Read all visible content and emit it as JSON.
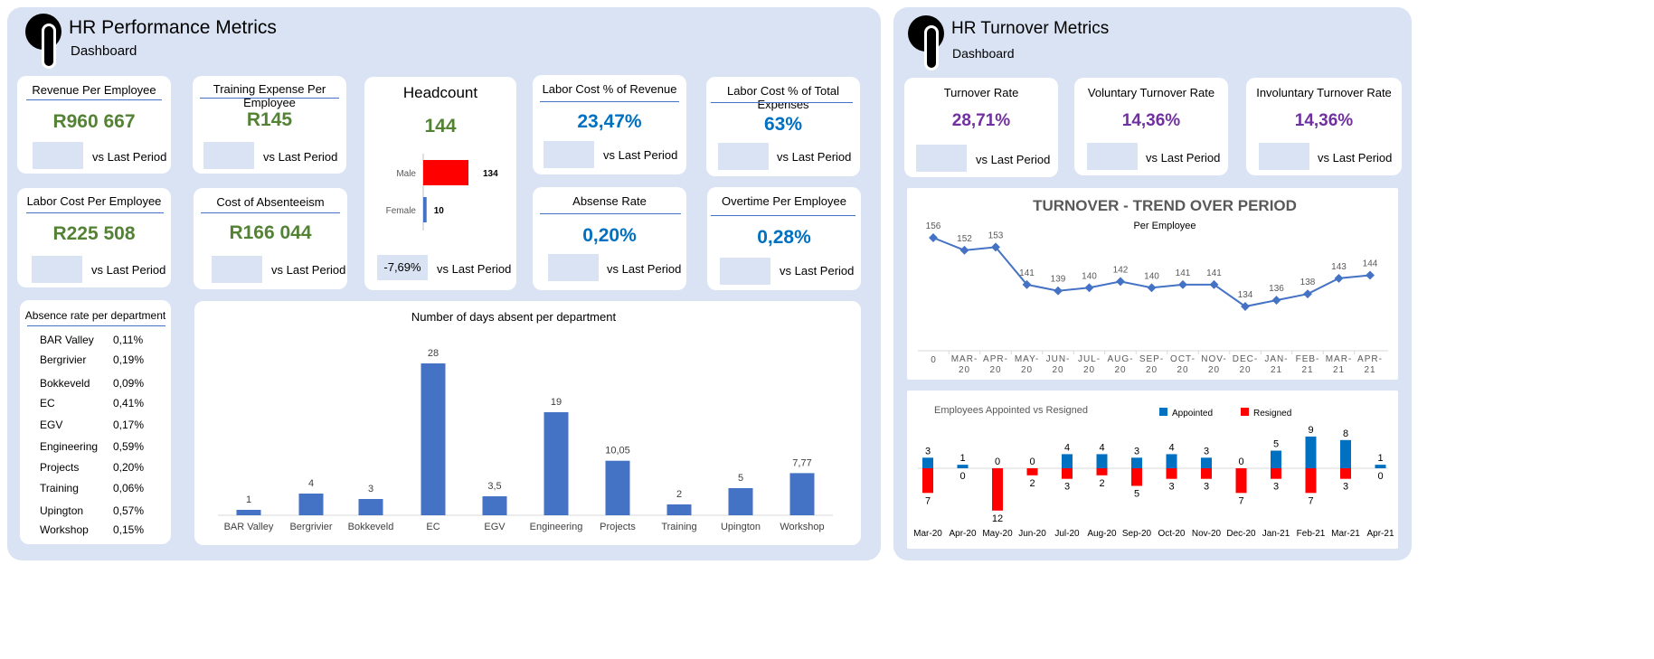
{
  "performance": {
    "title": "HR Performance Metrics",
    "subtitle": "Dashboard",
    "vs_label": "vs Last Period",
    "kpis": {
      "revenue_per_employee": {
        "title": "Revenue Per Employee",
        "value": "R960 667"
      },
      "training_expense": {
        "title": "Training Expense Per Employee",
        "value": "R145"
      },
      "labor_cost_revenue": {
        "title": "Labor Cost % of Revenue",
        "value": "23,47%"
      },
      "labor_cost_expenses": {
        "title": "Labor Cost % of Total Expenses",
        "value": "63%"
      },
      "labor_cost_per_employee": {
        "title": "Labor Cost Per Employee",
        "value": "R225 508"
      },
      "cost_absenteeism": {
        "title": "Cost of Absenteeism",
        "value": "R166 044"
      },
      "absense_rate": {
        "title": "Absense Rate",
        "value": "0,20%"
      },
      "overtime": {
        "title": "Overtime Per Employee",
        "value": "0,28%"
      }
    },
    "headcount": {
      "title": "Headcount",
      "value": "144",
      "change": "-7,69%",
      "bars": [
        {
          "label": "Male",
          "value": 134,
          "value_label": "134",
          "color": "#ff0000"
        },
        {
          "label": "Female",
          "value": 10,
          "value_label": "10",
          "color": "#4472c4"
        }
      ]
    },
    "absence_table": {
      "title": "Absence rate per department",
      "rows": [
        {
          "dept": "BAR Valley",
          "rate": "0,11%"
        },
        {
          "dept": "Bergrivier",
          "rate": "0,19%"
        },
        {
          "dept": "Bokkeveld",
          "rate": "0,09%"
        },
        {
          "dept": "EC",
          "rate": "0,41%"
        },
        {
          "dept": "EGV",
          "rate": "0,17%"
        },
        {
          "dept": "Engineering",
          "rate": "0,59%"
        },
        {
          "dept": "Projects",
          "rate": "0,20%"
        },
        {
          "dept": "Training",
          "rate": "0,06%"
        },
        {
          "dept": "Upington",
          "rate": "0,57%"
        },
        {
          "dept": "Workshop",
          "rate": "0,15%"
        }
      ]
    }
  },
  "turnover": {
    "title": "HR Turnover Metrics",
    "subtitle": "Dashboard",
    "vs_label": "vs Last Period",
    "kpis": {
      "turnover_rate": {
        "title": "Turnover Rate",
        "value": "28,71%"
      },
      "voluntary": {
        "title": "Voluntary Turnover Rate",
        "value": "14,36%"
      },
      "involuntary": {
        "title": "Involuntary Turnover Rate",
        "value": "14,36%"
      }
    }
  },
  "chart_data": [
    {
      "type": "bar",
      "title": "Number of days absent per department",
      "categories": [
        "BAR Valley",
        "Bergrivier",
        "Bokkeveld",
        "EC",
        "EGV",
        "Engineering",
        "Projects",
        "Training",
        "Upington",
        "Workshop"
      ],
      "values": [
        1,
        4,
        3,
        28,
        3.5,
        19,
        10.05,
        2,
        5,
        7.77
      ],
      "value_labels": [
        "1",
        "4",
        "3",
        "28",
        "3,5",
        "19",
        "10,05",
        "2",
        "5",
        "7,77"
      ],
      "color": "#4472c4"
    },
    {
      "type": "line",
      "title": "TURNOVER - TREND OVER PERIOD",
      "subtitle": "Per Employee",
      "categories": [
        [
          "0"
        ],
        [
          "MAR-",
          "20"
        ],
        [
          "APR-",
          "20"
        ],
        [
          "MAY-",
          "20"
        ],
        [
          "JUN-",
          "20"
        ],
        [
          "JUL-",
          "20"
        ],
        [
          "AUG-",
          "20"
        ],
        [
          "SEP-",
          "20"
        ],
        [
          "OCT-",
          "20"
        ],
        [
          "NOV-",
          "20"
        ],
        [
          "DEC-",
          "20"
        ],
        [
          "JAN-",
          "21"
        ],
        [
          "FEB-",
          "21"
        ],
        [
          "MAR-",
          "21"
        ],
        [
          "APR-",
          "21"
        ]
      ],
      "values": [
        156,
        152,
        153,
        141,
        139,
        140,
        142,
        140,
        141,
        141,
        134,
        136,
        138,
        143,
        144
      ],
      "color": "#4472c4"
    },
    {
      "type": "bar",
      "title": "Employees Appointed vs Resigned",
      "categories": [
        "Mar-20",
        "Apr-20",
        "May-20",
        "Jun-20",
        "Jul-20",
        "Aug-20",
        "Sep-20",
        "Oct-20",
        "Nov-20",
        "Dec-20",
        "Jan-21",
        "Feb-21",
        "Mar-21",
        "Apr-21"
      ],
      "legend": "top",
      "series": [
        {
          "name": "Appointed",
          "color": "#0070c0",
          "values": [
            3,
            1,
            0,
            0,
            4,
            4,
            3,
            4,
            3,
            0,
            5,
            9,
            8,
            1
          ]
        },
        {
          "name": "Resigned",
          "color": "#ff0000",
          "values": [
            7,
            0,
            12,
            2,
            3,
            2,
            5,
            3,
            3,
            7,
            3,
            7,
            3,
            0
          ]
        }
      ]
    }
  ]
}
